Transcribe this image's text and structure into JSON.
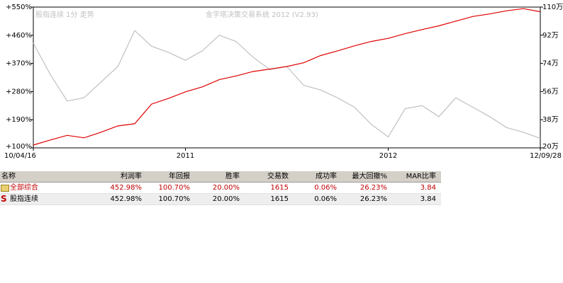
{
  "chart_data": {
    "type": "line",
    "title": "股指连续 1分 走势",
    "subtitle": "金字塔决策交易系统 2012 (V2.93)",
    "categories": [
      "10/04/16",
      null,
      null,
      null,
      null,
      null,
      null,
      null,
      null,
      "2011",
      null,
      null,
      null,
      null,
      null,
      null,
      null,
      null,
      null,
      null,
      null,
      "2012",
      null,
      null,
      null,
      null,
      null,
      null,
      null,
      null,
      "12/09/28"
    ],
    "series": [
      {
        "name": "全部综合",
        "color": "#e00000",
        "values": [
          109,
          125,
          140,
          132,
          150,
          170,
          177,
          240,
          258,
          279,
          295,
          318,
          330,
          344,
          352,
          360,
          372,
          395,
          410,
          426,
          440,
          450,
          465,
          478,
          490,
          505,
          520,
          528,
          538,
          545,
          535
        ]
      },
      {
        "name": "股指连续",
        "color": "#c0c0c0",
        "axis": "y2",
        "values": [
          87,
          67,
          50,
          52,
          62,
          72,
          95,
          85,
          81,
          76,
          82,
          92,
          88,
          78,
          70,
          72,
          60,
          57,
          52,
          46,
          35,
          27,
          45,
          47,
          40,
          52,
          46,
          40,
          33,
          30,
          26
        ]
      }
    ],
    "ylim": [
      100,
      550
    ],
    "yticks": [
      {
        "value": 100,
        "label": "+100%"
      },
      {
        "value": 190,
        "label": "+190%"
      },
      {
        "value": 280,
        "label": "+280%"
      },
      {
        "value": 370,
        "label": "+370%"
      },
      {
        "value": 460,
        "label": "+460%"
      },
      {
        "value": 550,
        "label": "+550%"
      }
    ],
    "y2lim": [
      20,
      110
    ],
    "y2ticks": [
      {
        "value": 20,
        "label": "20万"
      },
      {
        "value": 38,
        "label": "38万"
      },
      {
        "value": 56,
        "label": "56万"
      },
      {
        "value": 74,
        "label": "74万"
      },
      {
        "value": 92,
        "label": "92万"
      },
      {
        "value": 110,
        "label": "110万"
      }
    ]
  },
  "table": {
    "headers": [
      "名称",
      "利润率",
      "年回报",
      "胜率",
      "交易数",
      "成功率",
      "最大回撤%",
      "MAR比率"
    ],
    "rows": [
      [
        "全部综合",
        "452.98%",
        "100.70%",
        "20.00%",
        "1615",
        "0.06%",
        "26.23%",
        "3.84"
      ],
      [
        "股指连续",
        "452.98%",
        "100.70%",
        "20.00%",
        "1615",
        "0.06%",
        "26.23%",
        "3.84"
      ]
    ]
  }
}
